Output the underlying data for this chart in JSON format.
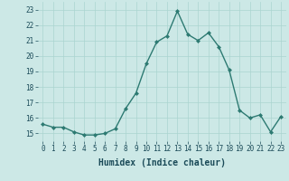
{
  "x": [
    0,
    1,
    2,
    3,
    4,
    5,
    6,
    7,
    8,
    9,
    10,
    11,
    12,
    13,
    14,
    15,
    16,
    17,
    18,
    19,
    20,
    21,
    22,
    23
  ],
  "y": [
    15.6,
    15.4,
    15.4,
    15.1,
    14.9,
    14.9,
    15.0,
    15.3,
    16.6,
    17.6,
    19.5,
    20.9,
    21.3,
    22.9,
    21.4,
    21.0,
    21.5,
    20.6,
    19.1,
    16.5,
    16.0,
    16.2,
    15.1,
    16.1
  ],
  "xlabel": "Humidex (Indice chaleur)",
  "xlim": [
    -0.5,
    23.5
  ],
  "ylim": [
    14.5,
    23.5
  ],
  "yticks": [
    15,
    16,
    17,
    18,
    19,
    20,
    21,
    22,
    23
  ],
  "xticks": [
    0,
    1,
    2,
    3,
    4,
    5,
    6,
    7,
    8,
    9,
    10,
    11,
    12,
    13,
    14,
    15,
    16,
    17,
    18,
    19,
    20,
    21,
    22,
    23
  ],
  "line_color": "#2d7a72",
  "marker_color": "#2d7a72",
  "bg_color": "#cce8e6",
  "grid_color": "#aad4d0",
  "tick_color": "#1a4a58",
  "xlabel_color": "#1a4a58",
  "tick_fontsize": 5.5,
  "xlabel_fontsize": 7.0,
  "linewidth": 1.0,
  "markersize": 2.0
}
